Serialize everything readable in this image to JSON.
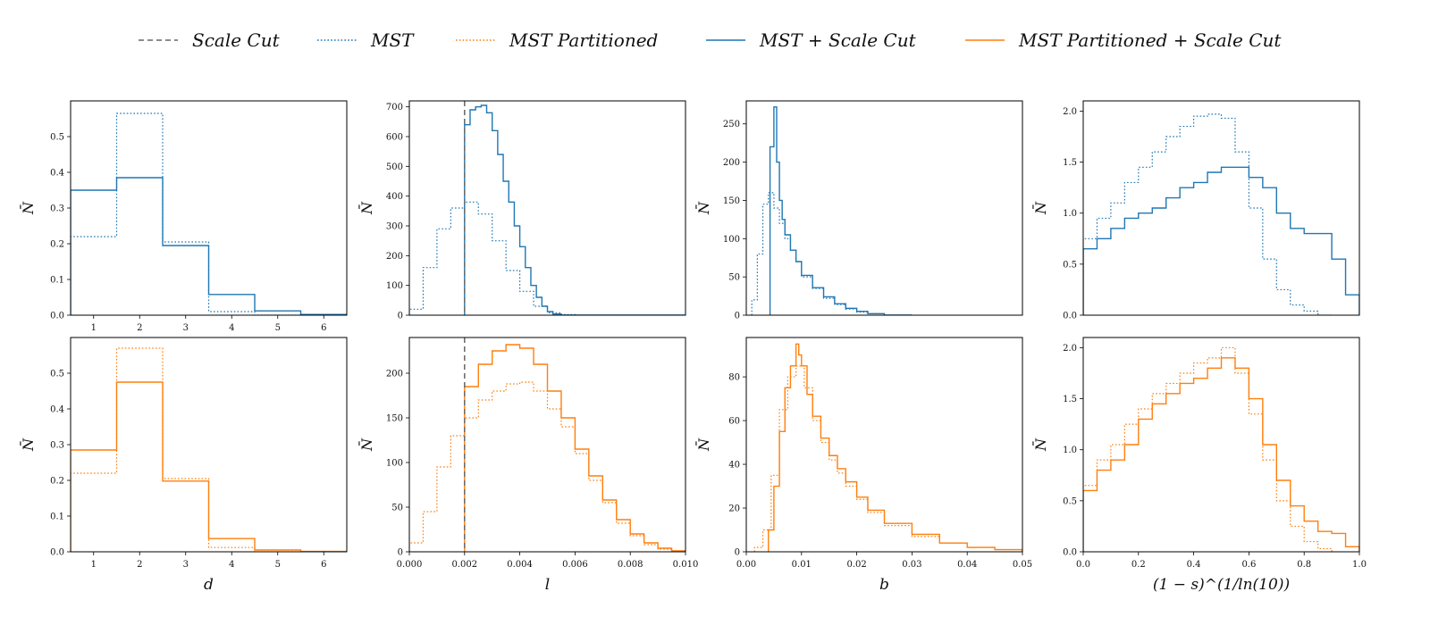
{
  "colors": {
    "blue": "#1f77b4",
    "orange": "#ff7f0e",
    "gray": "#666666"
  },
  "legend": [
    {
      "label": "Scale Cut",
      "style": "dashed",
      "color": "gray"
    },
    {
      "label": "MST",
      "style": "dotted",
      "color": "blue"
    },
    {
      "label": "MST Partitioned",
      "style": "dotted",
      "color": "orange"
    },
    {
      "label": "MST + Scale Cut",
      "style": "solid",
      "color": "blue"
    },
    {
      "label": "MST Partitioned + Scale Cut",
      "style": "solid",
      "color": "orange"
    }
  ],
  "chart_data": [
    {
      "type": "histogram",
      "row": 0,
      "col": 0,
      "ylabel": "N̄",
      "xlabel": "",
      "xlim": [
        0.5,
        6.5
      ],
      "ylim": [
        0,
        0.6
      ],
      "xticks": [
        1,
        2,
        3,
        4,
        5,
        6
      ],
      "yticks": [
        0,
        0.1,
        0.2,
        0.3,
        0.4,
        0.5
      ],
      "series": [
        {
          "color": "blue",
          "style": "dotted",
          "edges": [
            0.5,
            1.5,
            2.5,
            3.5,
            4.5,
            5.5,
            6.5
          ],
          "values": [
            0.22,
            0.565,
            0.205,
            0.01,
            0.0,
            0.0
          ]
        },
        {
          "color": "blue",
          "style": "solid",
          "edges": [
            0.5,
            1.5,
            2.5,
            3.5,
            4.5,
            5.5,
            6.5
          ],
          "values": [
            0.35,
            0.385,
            0.195,
            0.058,
            0.012,
            0.002
          ]
        }
      ]
    },
    {
      "type": "histogram",
      "row": 0,
      "col": 1,
      "ylabel": "N̄",
      "xlabel": "",
      "xlim": [
        0,
        0.01
      ],
      "ylim": [
        0,
        720
      ],
      "xticks": [],
      "yticks": [
        0,
        100,
        200,
        300,
        400,
        500,
        600,
        700
      ],
      "vline": 0.002,
      "series": [
        {
          "color": "blue",
          "style": "dotted",
          "edges": [
            0,
            0.0005,
            0.001,
            0.0015,
            0.002,
            0.0025,
            0.003,
            0.0035,
            0.004,
            0.0045,
            0.005,
            0.0055,
            0.006,
            0.01
          ],
          "values": [
            20,
            160,
            290,
            360,
            380,
            340,
            250,
            150,
            80,
            30,
            8,
            2,
            0
          ]
        },
        {
          "color": "blue",
          "style": "solid",
          "edges": [
            0.002,
            0.0022,
            0.0024,
            0.0026,
            0.0028,
            0.003,
            0.0032,
            0.0034,
            0.0036,
            0.0038,
            0.004,
            0.0042,
            0.0044,
            0.0046,
            0.0048,
            0.005,
            0.0052,
            0.0055,
            0.01
          ],
          "values": [
            640,
            690,
            700,
            705,
            680,
            620,
            540,
            450,
            380,
            300,
            230,
            160,
            100,
            60,
            30,
            12,
            4,
            0
          ]
        }
      ]
    },
    {
      "type": "histogram",
      "row": 0,
      "col": 2,
      "ylabel": "N̄",
      "xlabel": "",
      "xlim": [
        0,
        0.05
      ],
      "ylim": [
        0,
        280
      ],
      "xticks": [],
      "yticks": [
        0,
        50,
        100,
        150,
        200,
        250
      ],
      "series": [
        {
          "color": "blue",
          "style": "dotted",
          "edges": [
            0.001,
            0.002,
            0.003,
            0.004,
            0.005,
            0.006,
            0.007,
            0.008,
            0.009,
            0.01,
            0.012,
            0.014,
            0.016,
            0.018,
            0.02,
            0.022,
            0.025,
            0.03
          ],
          "values": [
            20,
            80,
            145,
            160,
            140,
            120,
            100,
            85,
            70,
            50,
            35,
            22,
            14,
            8,
            4,
            2,
            0
          ]
        },
        {
          "color": "blue",
          "style": "solid",
          "edges": [
            0.0043,
            0.005,
            0.0055,
            0.006,
            0.0065,
            0.007,
            0.008,
            0.009,
            0.01,
            0.012,
            0.014,
            0.016,
            0.018,
            0.02,
            0.022,
            0.025,
            0.03
          ],
          "values": [
            220,
            272,
            200,
            150,
            125,
            105,
            85,
            70,
            52,
            36,
            24,
            15,
            9,
            5,
            2,
            0
          ]
        }
      ]
    },
    {
      "type": "histogram",
      "row": 0,
      "col": 3,
      "ylabel": "N̄",
      "xlabel": "",
      "xlim": [
        0,
        1
      ],
      "ylim": [
        0,
        2.1
      ],
      "xticks": [],
      "yticks": [
        0,
        0.5,
        1.0,
        1.5,
        2.0
      ],
      "series": [
        {
          "color": "blue",
          "style": "dotted",
          "edges": [
            0,
            0.05,
            0.1,
            0.15,
            0.2,
            0.25,
            0.3,
            0.35,
            0.4,
            0.45,
            0.5,
            0.55,
            0.6,
            0.65,
            0.7,
            0.75,
            0.8,
            0.85,
            0.9
          ],
          "values": [
            0.75,
            0.95,
            1.1,
            1.3,
            1.45,
            1.6,
            1.75,
            1.85,
            1.95,
            1.97,
            1.93,
            1.6,
            1.05,
            0.55,
            0.25,
            0.1,
            0.04,
            0.0
          ]
        },
        {
          "color": "blue",
          "style": "solid",
          "edges": [
            0,
            0.05,
            0.1,
            0.15,
            0.2,
            0.25,
            0.3,
            0.35,
            0.4,
            0.45,
            0.5,
            0.55,
            0.6,
            0.65,
            0.7,
            0.75,
            0.8,
            0.85,
            0.9,
            0.95,
            1.0
          ],
          "values": [
            0.65,
            0.75,
            0.85,
            0.95,
            1.0,
            1.05,
            1.15,
            1.25,
            1.3,
            1.4,
            1.45,
            1.45,
            1.35,
            1.25,
            1.0,
            0.85,
            0.8,
            0.8,
            0.55,
            0.2
          ]
        }
      ]
    },
    {
      "type": "histogram",
      "row": 1,
      "col": 0,
      "ylabel": "N̄",
      "xlabel": "d",
      "xlim": [
        0.5,
        6.5
      ],
      "ylim": [
        0,
        0.6
      ],
      "xticks": [
        1,
        2,
        3,
        4,
        5,
        6
      ],
      "yticks": [
        0,
        0.1,
        0.2,
        0.3,
        0.4,
        0.5
      ],
      "series": [
        {
          "color": "orange",
          "style": "dotted",
          "edges": [
            0.5,
            1.5,
            2.5,
            3.5,
            4.5,
            5.5,
            6.5
          ],
          "values": [
            0.22,
            0.57,
            0.205,
            0.012,
            0.0,
            0.0
          ]
        },
        {
          "color": "orange",
          "style": "solid",
          "edges": [
            0.5,
            1.5,
            2.5,
            3.5,
            4.5,
            5.5,
            6.5
          ],
          "values": [
            0.285,
            0.475,
            0.198,
            0.037,
            0.005,
            0.001
          ]
        }
      ]
    },
    {
      "type": "histogram",
      "row": 1,
      "col": 1,
      "ylabel": "N̄",
      "xlabel": "l",
      "xlim": [
        0,
        0.01
      ],
      "ylim": [
        0,
        240
      ],
      "xticks": [
        0.0,
        0.002,
        0.004,
        0.006,
        0.008,
        0.01
      ],
      "yticks": [
        0,
        50,
        100,
        150,
        200
      ],
      "vline": 0.002,
      "series": [
        {
          "color": "orange",
          "style": "dotted",
          "edges": [
            0,
            0.0005,
            0.001,
            0.0015,
            0.002,
            0.0025,
            0.003,
            0.0035,
            0.004,
            0.0045,
            0.005,
            0.0055,
            0.006,
            0.0065,
            0.007,
            0.0075,
            0.008,
            0.0085,
            0.009,
            0.0095,
            0.01
          ],
          "values": [
            10,
            45,
            95,
            130,
            150,
            170,
            180,
            188,
            190,
            180,
            160,
            140,
            110,
            80,
            55,
            32,
            18,
            8,
            3,
            1
          ]
        },
        {
          "color": "orange",
          "style": "solid",
          "edges": [
            0.002,
            0.0025,
            0.003,
            0.0035,
            0.004,
            0.0045,
            0.005,
            0.0055,
            0.006,
            0.0065,
            0.007,
            0.0075,
            0.008,
            0.0085,
            0.009,
            0.0095,
            0.01
          ],
          "values": [
            185,
            210,
            225,
            232,
            228,
            210,
            180,
            150,
            115,
            85,
            58,
            36,
            20,
            10,
            4,
            1
          ]
        }
      ]
    },
    {
      "type": "histogram",
      "row": 1,
      "col": 2,
      "ylabel": "N̄",
      "xlabel": "b",
      "xlim": [
        0,
        0.05
      ],
      "ylim": [
        0,
        98
      ],
      "xticks": [
        0.0,
        0.01,
        0.02,
        0.03,
        0.04,
        0.05
      ],
      "yticks": [
        0,
        20,
        40,
        60,
        80
      ],
      "series": [
        {
          "color": "orange",
          "style": "dotted",
          "edges": [
            0.0015,
            0.003,
            0.0045,
            0.006,
            0.0075,
            0.009,
            0.0105,
            0.012,
            0.0135,
            0.015,
            0.0165,
            0.018,
            0.02,
            0.022,
            0.025,
            0.03,
            0.035,
            0.04,
            0.045,
            0.05
          ],
          "values": [
            2,
            10,
            35,
            65,
            80,
            85,
            75,
            60,
            50,
            42,
            36,
            30,
            24,
            18,
            12,
            7,
            4,
            2,
            1
          ]
        },
        {
          "color": "orange",
          "style": "solid",
          "edges": [
            0.004,
            0.005,
            0.006,
            0.007,
            0.008,
            0.009,
            0.0095,
            0.01,
            0.011,
            0.012,
            0.0135,
            0.015,
            0.0165,
            0.018,
            0.02,
            0.022,
            0.025,
            0.03,
            0.035,
            0.04,
            0.045,
            0.05
          ],
          "values": [
            10,
            30,
            55,
            75,
            85,
            95,
            90,
            85,
            72,
            62,
            52,
            44,
            38,
            32,
            25,
            19,
            13,
            8,
            4,
            2,
            1
          ]
        }
      ]
    },
    {
      "type": "histogram",
      "row": 1,
      "col": 3,
      "ylabel": "N̄",
      "xlabel": "(1 − s)^(1/ln(10))",
      "xlim": [
        0,
        1
      ],
      "ylim": [
        0,
        2.1
      ],
      "xticks": [
        0.0,
        0.2,
        0.4,
        0.6,
        0.8,
        1.0
      ],
      "yticks": [
        0,
        0.5,
        1.0,
        1.5,
        2.0
      ],
      "series": [
        {
          "color": "orange",
          "style": "dotted",
          "edges": [
            0,
            0.05,
            0.1,
            0.15,
            0.2,
            0.25,
            0.3,
            0.35,
            0.4,
            0.45,
            0.5,
            0.55,
            0.6,
            0.65,
            0.7,
            0.75,
            0.8,
            0.85,
            0.9
          ],
          "values": [
            0.65,
            0.9,
            1.05,
            1.25,
            1.4,
            1.55,
            1.65,
            1.75,
            1.85,
            1.9,
            2.0,
            1.75,
            1.35,
            0.9,
            0.5,
            0.25,
            0.1,
            0.03
          ]
        },
        {
          "color": "orange",
          "style": "solid",
          "edges": [
            0,
            0.05,
            0.1,
            0.15,
            0.2,
            0.25,
            0.3,
            0.35,
            0.4,
            0.45,
            0.5,
            0.55,
            0.6,
            0.65,
            0.7,
            0.75,
            0.8,
            0.85,
            0.9,
            0.95,
            1.0
          ],
          "values": [
            0.6,
            0.8,
            0.9,
            1.05,
            1.3,
            1.45,
            1.55,
            1.65,
            1.7,
            1.8,
            1.9,
            1.8,
            1.5,
            1.05,
            0.7,
            0.45,
            0.3,
            0.2,
            0.18,
            0.05
          ]
        }
      ]
    }
  ]
}
